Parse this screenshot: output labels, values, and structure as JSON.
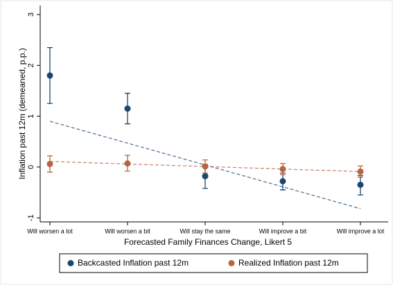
{
  "chart_data": {
    "type": "scatter",
    "x_label": "Forecasted Family Finances Change, Likert 5",
    "y_label": "Inflation past 12m (demeaned, p.p.)",
    "categories": [
      "Will worsen a lot",
      "Will worsen a bit",
      "Will stay the same",
      "Will improve a bit",
      "Will improve a lot"
    ],
    "ylim": [
      -1.08,
      3.15
    ],
    "yticks": [
      -1,
      0,
      1,
      2,
      3
    ],
    "series": [
      {
        "name": "Backcasted Inflation past 12m",
        "color": "#1a476f",
        "values": [
          1.8,
          1.15,
          -0.18,
          -0.28,
          -0.35
        ],
        "lower": [
          1.25,
          0.85,
          -0.42,
          -0.45,
          -0.55
        ],
        "upper": [
          2.35,
          1.45,
          0.05,
          -0.12,
          -0.17
        ],
        "fit": [
          0.9,
          0.47,
          0.04,
          -0.39,
          -0.82
        ]
      },
      {
        "name": "Realized Inflation past 12m",
        "color": "#b8643f",
        "values": [
          0.06,
          0.07,
          0.01,
          -0.04,
          -0.09
        ],
        "lower": [
          -0.1,
          -0.08,
          -0.12,
          -0.15,
          -0.2
        ],
        "upper": [
          0.22,
          0.23,
          0.14,
          0.07,
          0.02
        ],
        "fit": [
          0.11,
          0.06,
          0.01,
          -0.04,
          -0.09
        ]
      }
    ]
  }
}
